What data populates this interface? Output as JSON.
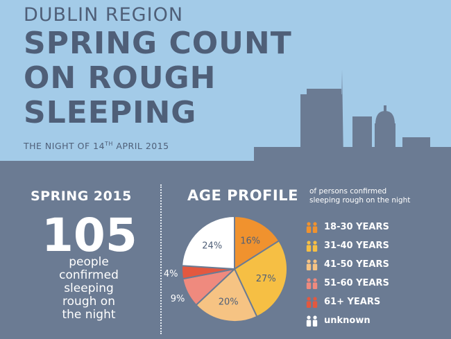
{
  "header": {
    "region": "DUBLIN REGION",
    "title_lines": [
      "SPRING COUNT",
      "ON ROUGH",
      "SLEEPING"
    ],
    "night_prefix": "THE NIGHT OF 14",
    "night_sup": "TH",
    "night_suffix": " APRIL 2015"
  },
  "spring": {
    "heading": "SPRING 2015",
    "count": "105",
    "desc_lines": [
      "people",
      "confirmed",
      "sleeping",
      "rough on",
      "the night"
    ]
  },
  "age": {
    "heading": "AGE PROFILE",
    "sub_lines": [
      "of persons confirmed",
      "sleeping rough on the night"
    ]
  },
  "chart_data": {
    "type": "pie",
    "slices": [
      {
        "label": "18-30 YEARS",
        "value": 16,
        "display": "16%",
        "color": "#f0922e"
      },
      {
        "label": "31-40 YEARS",
        "value": 27,
        "display": "27%",
        "color": "#f6bf44"
      },
      {
        "label": "41-50 YEARS",
        "value": 20,
        "display": "20%",
        "color": "#f6c383"
      },
      {
        "label": "51-60 YEARS",
        "value": 9,
        "display": "9%",
        "color": "#ef8a7e"
      },
      {
        "label": "61+ YEARS",
        "value": 4,
        "display": "4%",
        "color": "#e3583f"
      },
      {
        "label": "unknown",
        "value": 24,
        "display": "24%",
        "color": "#ffffff"
      }
    ]
  },
  "legend": [
    {
      "label": "18-30 YEARS",
      "color": "#f0922e"
    },
    {
      "label": "31-40 YEARS",
      "color": "#f6bf44"
    },
    {
      "label": "41-50 YEARS",
      "color": "#f6c383"
    },
    {
      "label": "51-60 YEARS",
      "color": "#ef8a7e"
    },
    {
      "label": "61+ YEARS",
      "color": "#e3583f"
    },
    {
      "label": "unknown",
      "color": "#ffffff"
    }
  ],
  "colors": {
    "sky": "#a3cbe8",
    "ground": "#6b7b93",
    "skyline": "#6b7b93",
    "title_text": "#4f5f78"
  }
}
